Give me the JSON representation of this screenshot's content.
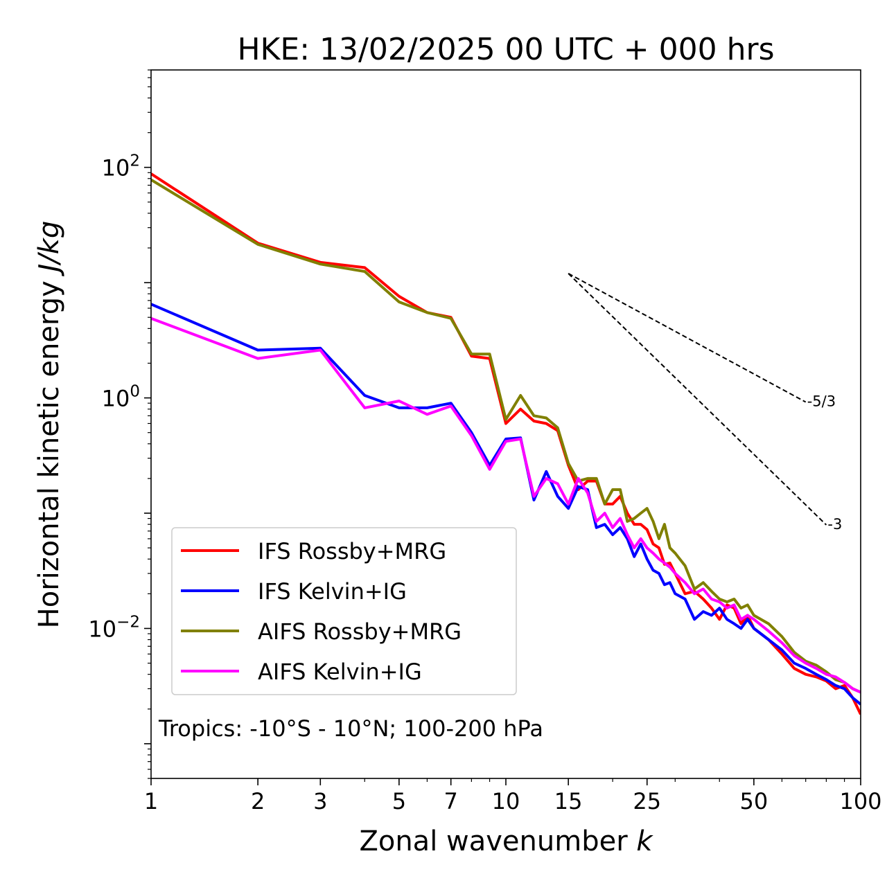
{
  "chart_data": {
    "type": "line",
    "title": "HKE: 13/02/2025 00 UTC + 000 hrs",
    "xlabel": "Zonal wavenumber",
    "xlabel_var": "k",
    "ylabel": "Horizontal kinetic energy",
    "ylabel_unit": "J/kg",
    "xscale": "log",
    "yscale": "log",
    "xlim": [
      1,
      100
    ],
    "ylim": [
      0.0005,
      700
    ],
    "xticks": [
      1,
      2,
      3,
      5,
      7,
      10,
      15,
      25,
      50,
      100
    ],
    "xtick_labels": [
      "1",
      "2",
      "3",
      "5",
      "7",
      "10",
      "15",
      "25",
      "50",
      "100"
    ],
    "yticks": [
      {
        "value": 100,
        "base": "10",
        "exp": "2"
      },
      {
        "value": 1,
        "base": "10",
        "exp": "0"
      },
      {
        "value": 0.01,
        "base": "10",
        "exp": "−2"
      }
    ],
    "annotation": "Tropics: -10°S - 10°N; 100-200 hPa",
    "legend_position": "lower-left",
    "reference_lines": [
      {
        "label": "-5/3",
        "slope": -1.6667,
        "x": [
          15,
          70
        ],
        "y_start": 12
      },
      {
        "label": "-3",
        "slope": -3,
        "x": [
          15,
          80
        ],
        "y_start": 12
      }
    ],
    "series": [
      {
        "name": "IFS Rossby+MRG",
        "color": "#ff0000",
        "x": [
          1,
          2,
          3,
          4,
          5,
          6,
          7,
          8,
          9,
          10,
          11,
          12,
          13,
          14,
          15,
          16,
          17,
          18,
          19,
          20,
          21,
          22,
          23,
          24,
          25,
          26,
          27,
          28,
          29,
          30,
          32,
          34,
          36,
          38,
          40,
          42,
          44,
          46,
          48,
          50,
          55,
          60,
          65,
          70,
          75,
          80,
          85,
          90,
          95,
          100
        ],
        "y": [
          88,
          22,
          15,
          13.5,
          7.6,
          5.5,
          5.0,
          2.3,
          2.2,
          0.6,
          0.8,
          0.63,
          0.6,
          0.52,
          0.26,
          0.16,
          0.19,
          0.19,
          0.12,
          0.12,
          0.14,
          0.1,
          0.08,
          0.08,
          0.072,
          0.054,
          0.05,
          0.036,
          0.037,
          0.03,
          0.02,
          0.021,
          0.018,
          0.015,
          0.012,
          0.016,
          0.015,
          0.011,
          0.013,
          0.01,
          0.008,
          0.006,
          0.0045,
          0.004,
          0.0038,
          0.0035,
          0.003,
          0.0032,
          0.0025,
          0.0018
        ]
      },
      {
        "name": "IFS Kelvin+IG",
        "color": "#0000ff",
        "x": [
          1,
          2,
          3,
          4,
          5,
          6,
          7,
          8,
          9,
          10,
          11,
          12,
          13,
          14,
          15,
          16,
          17,
          18,
          19,
          20,
          21,
          22,
          23,
          24,
          25,
          26,
          27,
          28,
          29,
          30,
          32,
          34,
          36,
          38,
          40,
          42,
          44,
          46,
          48,
          50,
          55,
          60,
          65,
          70,
          75,
          80,
          85,
          90,
          95,
          100
        ],
        "y": [
          6.5,
          2.6,
          2.7,
          1.05,
          0.82,
          0.82,
          0.9,
          0.5,
          0.26,
          0.44,
          0.45,
          0.13,
          0.23,
          0.14,
          0.11,
          0.17,
          0.16,
          0.075,
          0.08,
          0.065,
          0.075,
          0.06,
          0.042,
          0.054,
          0.04,
          0.032,
          0.03,
          0.024,
          0.025,
          0.02,
          0.018,
          0.012,
          0.014,
          0.013,
          0.015,
          0.012,
          0.011,
          0.01,
          0.012,
          0.01,
          0.008,
          0.0065,
          0.005,
          0.0045,
          0.004,
          0.0036,
          0.0032,
          0.003,
          0.0025,
          0.0022
        ]
      },
      {
        "name": "AIFS Rossby+MRG",
        "color": "#808000",
        "x": [
          1,
          2,
          3,
          4,
          5,
          6,
          7,
          8,
          9,
          10,
          11,
          12,
          13,
          14,
          15,
          16,
          17,
          18,
          19,
          20,
          21,
          22,
          23,
          24,
          25,
          26,
          27,
          28,
          29,
          30,
          32,
          34,
          36,
          38,
          40,
          42,
          44,
          46,
          48,
          50,
          55,
          60,
          65,
          70,
          75,
          80,
          85,
          90,
          95,
          100
        ],
        "y": [
          78,
          21.5,
          14.5,
          12.5,
          6.8,
          5.5,
          4.9,
          2.4,
          2.4,
          0.65,
          1.05,
          0.7,
          0.67,
          0.55,
          0.27,
          0.19,
          0.2,
          0.2,
          0.12,
          0.16,
          0.16,
          0.085,
          0.09,
          0.1,
          0.11,
          0.085,
          0.06,
          0.08,
          0.05,
          0.045,
          0.035,
          0.022,
          0.025,
          0.021,
          0.018,
          0.017,
          0.018,
          0.015,
          0.016,
          0.013,
          0.011,
          0.0085,
          0.0062,
          0.0052,
          0.0048,
          0.0042,
          0.0036,
          0.0034,
          0.003,
          0.0028
        ]
      },
      {
        "name": "AIFS Kelvin+IG",
        "color": "#ff00ff",
        "x": [
          1,
          2,
          3,
          4,
          5,
          6,
          7,
          8,
          9,
          10,
          11,
          12,
          13,
          14,
          15,
          16,
          17,
          18,
          19,
          20,
          21,
          22,
          23,
          24,
          25,
          26,
          27,
          28,
          29,
          30,
          32,
          34,
          36,
          38,
          40,
          42,
          44,
          46,
          48,
          50,
          55,
          60,
          65,
          70,
          75,
          80,
          85,
          90,
          95,
          100
        ],
        "y": [
          4.9,
          2.2,
          2.6,
          0.82,
          0.94,
          0.72,
          0.85,
          0.47,
          0.24,
          0.42,
          0.44,
          0.14,
          0.2,
          0.18,
          0.12,
          0.2,
          0.15,
          0.085,
          0.1,
          0.075,
          0.09,
          0.065,
          0.05,
          0.06,
          0.05,
          0.045,
          0.04,
          0.037,
          0.034,
          0.03,
          0.025,
          0.02,
          0.022,
          0.018,
          0.017,
          0.015,
          0.016,
          0.012,
          0.013,
          0.012,
          0.0095,
          0.0075,
          0.0058,
          0.005,
          0.0045,
          0.004,
          0.0038,
          0.0034,
          0.003,
          0.0028
        ]
      }
    ]
  }
}
